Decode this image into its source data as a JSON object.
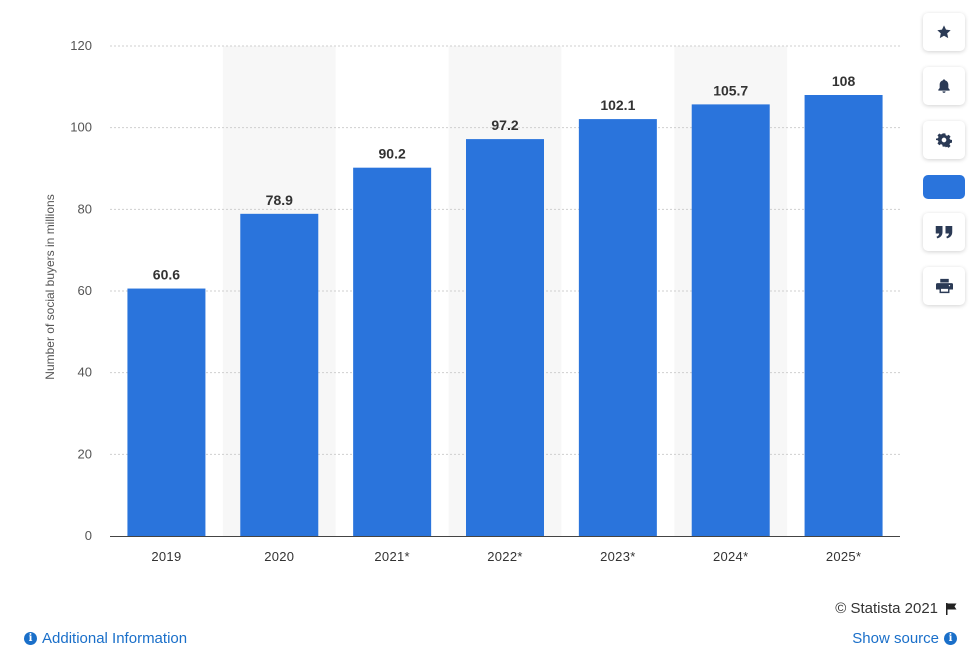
{
  "chart_data": {
    "type": "bar",
    "categories": [
      "2019",
      "2020",
      "2021*",
      "2022*",
      "2023*",
      "2024*",
      "2025*"
    ],
    "values": [
      60.6,
      78.9,
      90.2,
      97.2,
      102.1,
      105.7,
      108
    ],
    "value_labels": [
      "60.6",
      "78.9",
      "90.2",
      "97.2",
      "102.1",
      "105.7",
      "108"
    ],
    "ylabel": "Number of social buyers in millions",
    "xlabel": "",
    "title": "",
    "ylim": [
      0,
      120
    ],
    "yticks": [
      "0",
      "20",
      "40",
      "60",
      "80",
      "100",
      "120"
    ],
    "grid": true,
    "bar_color": "#2a74dc",
    "alt_band_color": "#f7f7f7"
  },
  "toolbar": {
    "items": [
      {
        "name": "star-icon"
      },
      {
        "name": "bell-icon"
      },
      {
        "name": "gear-icon"
      },
      {
        "name": "share-icon"
      },
      {
        "name": "quote-icon"
      },
      {
        "name": "print-icon"
      }
    ]
  },
  "footer": {
    "copyright": "© Statista 2021",
    "additional_info": "Additional Information",
    "show_source": "Show source"
  }
}
